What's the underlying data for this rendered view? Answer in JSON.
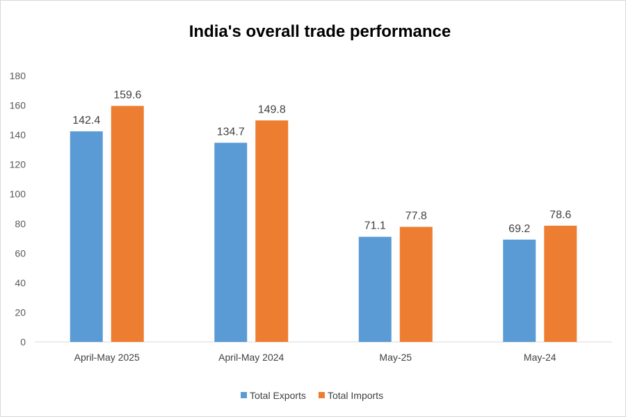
{
  "chart_data": {
    "type": "bar",
    "title": "India's overall trade performance",
    "xlabel": "",
    "ylabel": "",
    "categories": [
      "April-May 2025",
      "April-May 2024",
      "May-25",
      "May-24"
    ],
    "series": [
      {
        "name": "Total Exports",
        "values": [
          142.4,
          134.7,
          71.1,
          69.2
        ],
        "color": "#5b9bd5"
      },
      {
        "name": "Total Imports",
        "values": [
          159.6,
          149.8,
          77.8,
          78.6
        ],
        "color": "#ed7d31"
      }
    ],
    "ylim": [
      0,
      180
    ],
    "yticks": [
      0,
      20,
      40,
      60,
      80,
      100,
      120,
      140,
      160,
      180
    ],
    "grid": false,
    "legend_position": "bottom",
    "data_labels": true
  }
}
